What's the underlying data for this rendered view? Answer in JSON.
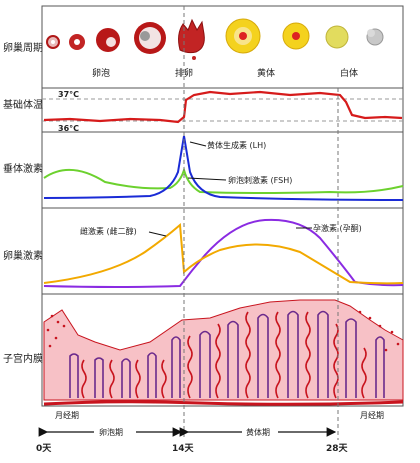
{
  "rows": {
    "ovarian_cycle": "卵巢周期",
    "basal_temp": "基础体温",
    "pituitary": "垂体激素",
    "ovarian_hormone": "卵巢激素",
    "endometrium": "子宫内膜"
  },
  "stages": {
    "follicle": "卵泡",
    "ovulation": "排卵",
    "corpus_luteum": "黄体",
    "corpus_albicans": "白体"
  },
  "temperature": {
    "high": "37°C",
    "low": "36°C"
  },
  "pituitary_hormones": {
    "lh": "黄体生成素 (LH)",
    "fsh": "卵泡刺激素 (FSH)"
  },
  "ovarian_hormones": {
    "estrogen": "雌激素 (雌二醇)",
    "progesterone": "孕激素 (孕酮)"
  },
  "phases": {
    "menses_start": "月经期",
    "follicular": "卵泡期",
    "luteal": "黄体期",
    "menses_end": "月经期"
  },
  "days": [
    "0天",
    "14天",
    "28天"
  ],
  "colors": {
    "lh": "#1a2bd6",
    "fsh": "#6cd12e",
    "estrogen": "#f2a900",
    "progesterone": "#8a2be2",
    "temperature": "#d61b1b",
    "endometrium_fill": "#f7c1c6",
    "gland": "#6b2a8c",
    "vessel": "#c8141e"
  }
}
